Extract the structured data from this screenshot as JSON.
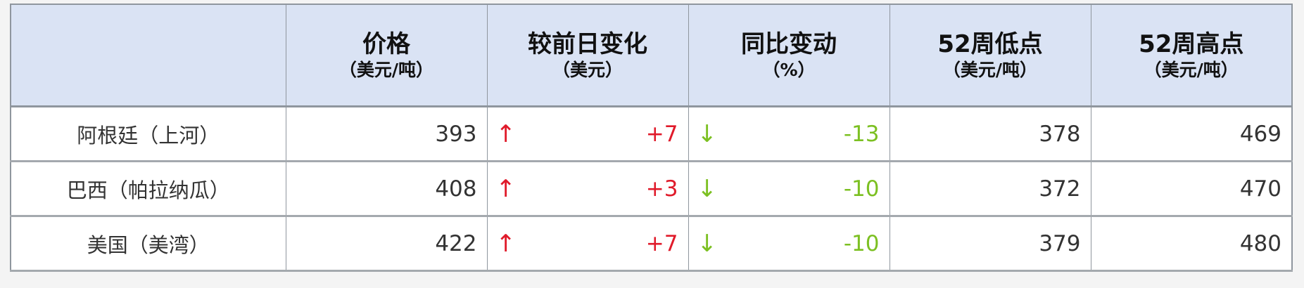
{
  "colors": {
    "header_bg": "#dae3f4",
    "up": "#e01a2a",
    "down": "#7cc022"
  },
  "headers": [
    {
      "title": "",
      "unit": ""
    },
    {
      "title": "价格",
      "unit": "（美元/吨）"
    },
    {
      "title": "较前日变化",
      "unit": "（美元）"
    },
    {
      "title": "同比变动",
      "unit": "（%）"
    },
    {
      "title": "52周低点",
      "unit": "（美元/吨）"
    },
    {
      "title": "52周高点",
      "unit": "（美元/吨）"
    }
  ],
  "rows": [
    {
      "name": "阿根廷（上河）",
      "price": "393",
      "day_arrow": "↑",
      "day_change": "+7",
      "yoy_arrow": "↓",
      "yoy_change": "-13",
      "low52": "378",
      "high52": "469"
    },
    {
      "name": "巴西（帕拉纳瓜）",
      "price": "408",
      "day_arrow": "↑",
      "day_change": "+3",
      "yoy_arrow": "↓",
      "yoy_change": "-10",
      "low52": "372",
      "high52": "470"
    },
    {
      "name": "美国（美湾）",
      "price": "422",
      "day_arrow": "↑",
      "day_change": "+7",
      "yoy_arrow": "↓",
      "yoy_change": "-10",
      "low52": "379",
      "high52": "480"
    }
  ]
}
